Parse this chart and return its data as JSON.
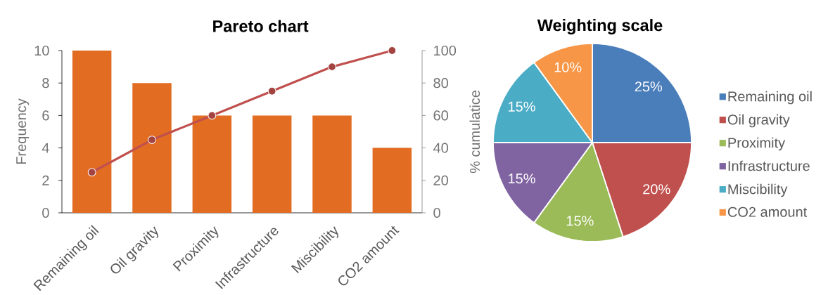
{
  "chart_data": [
    {
      "type": "bar",
      "title": "Pareto chart",
      "ylabel": "Frequency",
      "y2label": "% cumulatice",
      "categories": [
        "Remaining oil",
        "Oil gravity",
        "Proximity",
        "Infrastructure",
        "Miscibility",
        "CO2 amount"
      ],
      "series": [
        {
          "type": "bar",
          "color": "#e36c23",
          "values": [
            10,
            8,
            6,
            6,
            6,
            4
          ]
        },
        {
          "type": "line",
          "axis": "y2",
          "color": "#c0504d",
          "values": [
            25,
            45,
            60,
            75,
            90,
            100
          ]
        }
      ],
      "marker": "circle",
      "ylim": [
        0,
        10
      ],
      "yticks": [
        0,
        2,
        4,
        6,
        8,
        10
      ],
      "y2lim": [
        0,
        100
      ],
      "y2ticks": [
        0,
        20,
        40,
        60,
        80,
        100
      ]
    },
    {
      "type": "pie",
      "title": "Weighting scale",
      "categories": [
        "Remaining oil",
        "Oil gravity",
        "Proximity",
        "Infrastructure",
        "Miscibility",
        "CO2 amount"
      ],
      "values": [
        25,
        20,
        15,
        15,
        15,
        10
      ],
      "colors": [
        "#4a7ebb",
        "#c0504d",
        "#9bbb59",
        "#8064a2",
        "#4bacc6",
        "#f79646"
      ],
      "value_labels": [
        "25%",
        "20%",
        "15%",
        "15%",
        "15%",
        "10%"
      ],
      "legend": "right"
    }
  ]
}
